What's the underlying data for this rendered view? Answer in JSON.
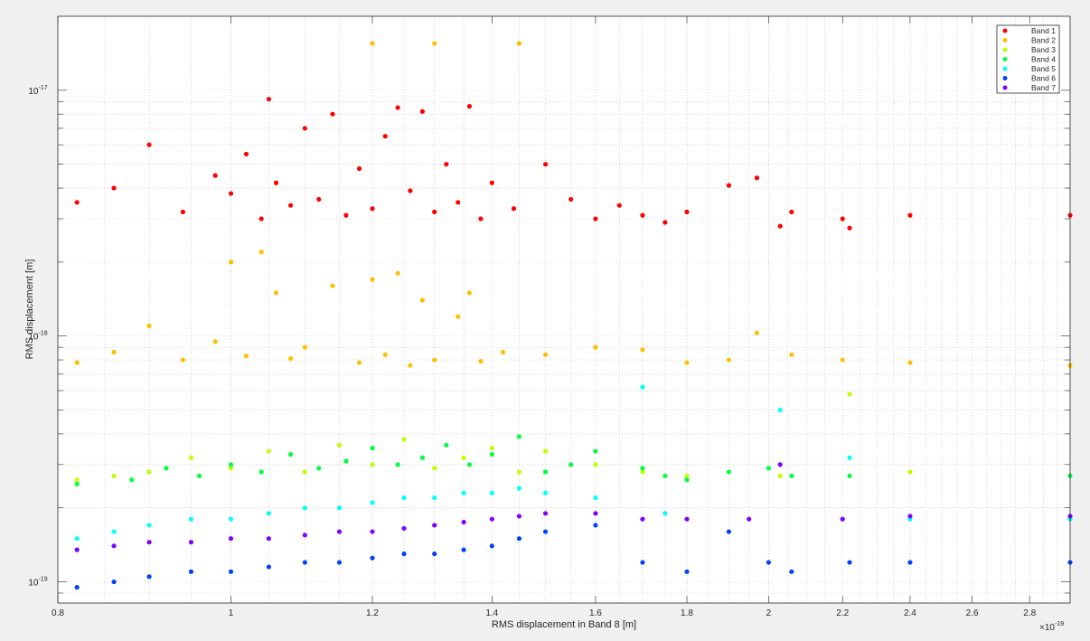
{
  "chart_data": {
    "type": "scatter",
    "title": "",
    "xlabel": "RMS displacement in Band 8 [m]",
    "ylabel": "RMS displacement [m]",
    "x_exponent_label": "×10",
    "x_exponent_power": "-19",
    "x_scale": "log",
    "y_scale": "log",
    "xlim": [
      0.8,
      2.95
    ],
    "x_multiplier": 1e-19,
    "ylim": [
      8.2e-20,
      2e-17
    ],
    "grid": true,
    "minor_grid": true,
    "legend_position": "top-right",
    "x_ticks": [
      0.8,
      1,
      1.2,
      1.4,
      1.6,
      1.8,
      2,
      2.2,
      2.4,
      2.6,
      2.8
    ],
    "x_tick_labels": [
      "0.8",
      "1",
      "1.2",
      "1.4",
      "1.6",
      "1.8",
      "2",
      "2.2",
      "2.4",
      "2.6",
      "2.8"
    ],
    "y_ticks": [
      {
        "value": 1e-19,
        "base": "10",
        "exp": "-19"
      },
      {
        "value": 1e-18,
        "base": "10",
        "exp": "-18"
      },
      {
        "value": 1e-17,
        "base": "10",
        "exp": "-17"
      }
    ],
    "series": [
      {
        "name": "Band 1",
        "color": "#ff0000",
        "points": [
          [
            0.82,
            3.5e-18
          ],
          [
            0.86,
            4e-18
          ],
          [
            0.9,
            6e-18
          ],
          [
            0.94,
            3.2e-18
          ],
          [
            0.98,
            4.5e-18
          ],
          [
            1.0,
            3.8e-18
          ],
          [
            1.02,
            5.5e-18
          ],
          [
            1.04,
            3e-18
          ],
          [
            1.05,
            9.2e-18
          ],
          [
            1.06,
            4.2e-18
          ],
          [
            1.08,
            3.4e-18
          ],
          [
            1.1,
            7e-18
          ],
          [
            1.12,
            3.6e-18
          ],
          [
            1.14,
            8e-18
          ],
          [
            1.16,
            3.1e-18
          ],
          [
            1.18,
            4.8e-18
          ],
          [
            1.2,
            3.3e-18
          ],
          [
            1.22,
            6.5e-18
          ],
          [
            1.24,
            8.5e-18
          ],
          [
            1.26,
            3.9e-18
          ],
          [
            1.28,
            8.2e-18
          ],
          [
            1.3,
            3.2e-18
          ],
          [
            1.32,
            5e-18
          ],
          [
            1.34,
            3.5e-18
          ],
          [
            1.36,
            8.6e-18
          ],
          [
            1.38,
            3e-18
          ],
          [
            1.4,
            4.2e-18
          ],
          [
            1.44,
            3.3e-18
          ],
          [
            1.5,
            5e-18
          ],
          [
            1.55,
            3.6e-18
          ],
          [
            1.6,
            3e-18
          ],
          [
            1.65,
            3.4e-18
          ],
          [
            1.7,
            3.1e-18
          ],
          [
            1.75,
            2.9e-18
          ],
          [
            1.8,
            3.2e-18
          ],
          [
            1.9,
            4.1e-18
          ],
          [
            1.97,
            4.4e-18
          ],
          [
            2.03,
            2.8e-18
          ],
          [
            2.06,
            3.2e-18
          ],
          [
            2.2,
            3e-18
          ],
          [
            2.22,
            2.75e-18
          ],
          [
            2.4,
            3.1e-18
          ],
          [
            2.95,
            3.1e-18
          ]
        ]
      },
      {
        "name": "Band 2",
        "color": "#ffbf00",
        "points": [
          [
            0.82,
            7.8e-19
          ],
          [
            0.86,
            8.6e-19
          ],
          [
            0.9,
            1.1e-18
          ],
          [
            0.94,
            8e-19
          ],
          [
            0.98,
            9.5e-19
          ],
          [
            1.0,
            2e-18
          ],
          [
            1.02,
            8.3e-19
          ],
          [
            1.04,
            2.2e-18
          ],
          [
            1.06,
            1.5e-18
          ],
          [
            1.08,
            8.1e-19
          ],
          [
            1.1,
            9e-19
          ],
          [
            1.14,
            1.6e-18
          ],
          [
            1.18,
            7.8e-19
          ],
          [
            1.2,
            1.7e-18
          ],
          [
            1.22,
            8.4e-19
          ],
          [
            1.24,
            1.8e-18
          ],
          [
            1.26,
            7.6e-19
          ],
          [
            1.28,
            1.4e-18
          ],
          [
            1.3,
            8e-19
          ],
          [
            1.34,
            1.2e-18
          ],
          [
            1.36,
            1.5e-18
          ],
          [
            1.38,
            7.9e-19
          ],
          [
            1.42,
            8.6e-19
          ],
          [
            1.5,
            8.4e-19
          ],
          [
            1.6,
            9e-19
          ],
          [
            1.7,
            8.8e-19
          ],
          [
            1.8,
            7.8e-19
          ],
          [
            1.9,
            8e-19
          ],
          [
            1.97,
            1.03e-18
          ],
          [
            2.06,
            8.4e-19
          ],
          [
            2.2,
            8e-19
          ],
          [
            2.4,
            7.8e-19
          ],
          [
            2.95,
            7.6e-19
          ],
          [
            1.2,
            1.55e-17
          ],
          [
            1.3,
            1.55e-17
          ],
          [
            1.45,
            1.55e-17
          ]
        ]
      },
      {
        "name": "Band 3",
        "color": "#bfff00",
        "points": [
          [
            0.82,
            2.6e-19
          ],
          [
            0.86,
            2.7e-19
          ],
          [
            0.9,
            2.8e-19
          ],
          [
            0.95,
            3.2e-19
          ],
          [
            1.0,
            2.9e-19
          ],
          [
            1.05,
            3.4e-19
          ],
          [
            1.1,
            2.8e-19
          ],
          [
            1.15,
            3.6e-19
          ],
          [
            1.2,
            3e-19
          ],
          [
            1.25,
            3.8e-19
          ],
          [
            1.3,
            2.9e-19
          ],
          [
            1.35,
            3.2e-19
          ],
          [
            1.4,
            3.5e-19
          ],
          [
            1.45,
            2.8e-19
          ],
          [
            1.5,
            3.4e-19
          ],
          [
            1.6,
            3e-19
          ],
          [
            1.7,
            2.8e-19
          ],
          [
            1.8,
            2.7e-19
          ],
          [
            2.03,
            2.7e-19
          ],
          [
            2.22,
            5.8e-19
          ],
          [
            2.4,
            2.8e-19
          ]
        ]
      },
      {
        "name": "Band 4",
        "color": "#00ff40",
        "points": [
          [
            0.82,
            2.5e-19
          ],
          [
            0.88,
            2.6e-19
          ],
          [
            0.92,
            2.9e-19
          ],
          [
            0.96,
            2.7e-19
          ],
          [
            1.0,
            3e-19
          ],
          [
            1.04,
            2.8e-19
          ],
          [
            1.08,
            3.3e-19
          ],
          [
            1.12,
            2.9e-19
          ],
          [
            1.16,
            3.1e-19
          ],
          [
            1.2,
            3.5e-19
          ],
          [
            1.24,
            3e-19
          ],
          [
            1.28,
            3.2e-19
          ],
          [
            1.32,
            3.6e-19
          ],
          [
            1.36,
            3e-19
          ],
          [
            1.4,
            3.3e-19
          ],
          [
            1.45,
            3.9e-19
          ],
          [
            1.5,
            2.8e-19
          ],
          [
            1.55,
            3e-19
          ],
          [
            1.6,
            3.4e-19
          ],
          [
            1.7,
            2.9e-19
          ],
          [
            1.75,
            2.7e-19
          ],
          [
            1.8,
            2.6e-19
          ],
          [
            1.9,
            2.8e-19
          ],
          [
            2.0,
            2.9e-19
          ],
          [
            2.06,
            2.7e-19
          ],
          [
            2.22,
            2.7e-19
          ],
          [
            2.95,
            2.7e-19
          ]
        ]
      },
      {
        "name": "Band 5",
        "color": "#00ffff",
        "points": [
          [
            0.82,
            1.5e-19
          ],
          [
            0.86,
            1.6e-19
          ],
          [
            0.9,
            1.7e-19
          ],
          [
            0.95,
            1.8e-19
          ],
          [
            1.0,
            1.8e-19
          ],
          [
            1.05,
            1.9e-19
          ],
          [
            1.1,
            2e-19
          ],
          [
            1.15,
            2e-19
          ],
          [
            1.2,
            2.1e-19
          ],
          [
            1.25,
            2.2e-19
          ],
          [
            1.3,
            2.2e-19
          ],
          [
            1.35,
            2.3e-19
          ],
          [
            1.4,
            2.3e-19
          ],
          [
            1.45,
            2.4e-19
          ],
          [
            1.5,
            2.3e-19
          ],
          [
            1.6,
            2.2e-19
          ],
          [
            1.7,
            6.2e-19
          ],
          [
            1.75,
            1.9e-19
          ],
          [
            2.03,
            5e-19
          ],
          [
            2.2,
            1.8e-19
          ],
          [
            2.22,
            3.2e-19
          ],
          [
            2.4,
            1.8e-19
          ],
          [
            2.95,
            1.8e-19
          ]
        ]
      },
      {
        "name": "Band 6",
        "color": "#0040ff",
        "points": [
          [
            0.82,
            9.5e-20
          ],
          [
            0.86,
            1e-19
          ],
          [
            0.9,
            1.05e-19
          ],
          [
            0.95,
            1.1e-19
          ],
          [
            1.0,
            1.1e-19
          ],
          [
            1.05,
            1.15e-19
          ],
          [
            1.1,
            1.2e-19
          ],
          [
            1.15,
            1.2e-19
          ],
          [
            1.2,
            1.25e-19
          ],
          [
            1.25,
            1.3e-19
          ],
          [
            1.3,
            1.3e-19
          ],
          [
            1.35,
            1.35e-19
          ],
          [
            1.4,
            1.4e-19
          ],
          [
            1.45,
            1.5e-19
          ],
          [
            1.5,
            1.6e-19
          ],
          [
            1.6,
            1.7e-19
          ],
          [
            1.7,
            1.2e-19
          ],
          [
            1.8,
            1.1e-19
          ],
          [
            1.9,
            1.6e-19
          ],
          [
            2.0,
            1.2e-19
          ],
          [
            2.06,
            1.1e-19
          ],
          [
            2.22,
            1.2e-19
          ],
          [
            2.4,
            1.2e-19
          ],
          [
            2.95,
            1.2e-19
          ]
        ]
      },
      {
        "name": "Band 7",
        "color": "#8000ff",
        "points": [
          [
            0.82,
            1.35e-19
          ],
          [
            0.86,
            1.4e-19
          ],
          [
            0.9,
            1.45e-19
          ],
          [
            0.95,
            1.45e-19
          ],
          [
            1.0,
            1.5e-19
          ],
          [
            1.05,
            1.5e-19
          ],
          [
            1.1,
            1.55e-19
          ],
          [
            1.15,
            1.6e-19
          ],
          [
            1.2,
            1.6e-19
          ],
          [
            1.25,
            1.65e-19
          ],
          [
            1.3,
            1.7e-19
          ],
          [
            1.35,
            1.75e-19
          ],
          [
            1.4,
            1.8e-19
          ],
          [
            1.45,
            1.85e-19
          ],
          [
            1.5,
            1.9e-19
          ],
          [
            1.6,
            1.9e-19
          ],
          [
            1.7,
            1.8e-19
          ],
          [
            1.8,
            1.8e-19
          ],
          [
            1.95,
            1.8e-19
          ],
          [
            2.03,
            3e-19
          ],
          [
            2.2,
            1.8e-19
          ],
          [
            2.4,
            1.85e-19
          ],
          [
            2.95,
            1.85e-19
          ]
        ]
      }
    ]
  }
}
